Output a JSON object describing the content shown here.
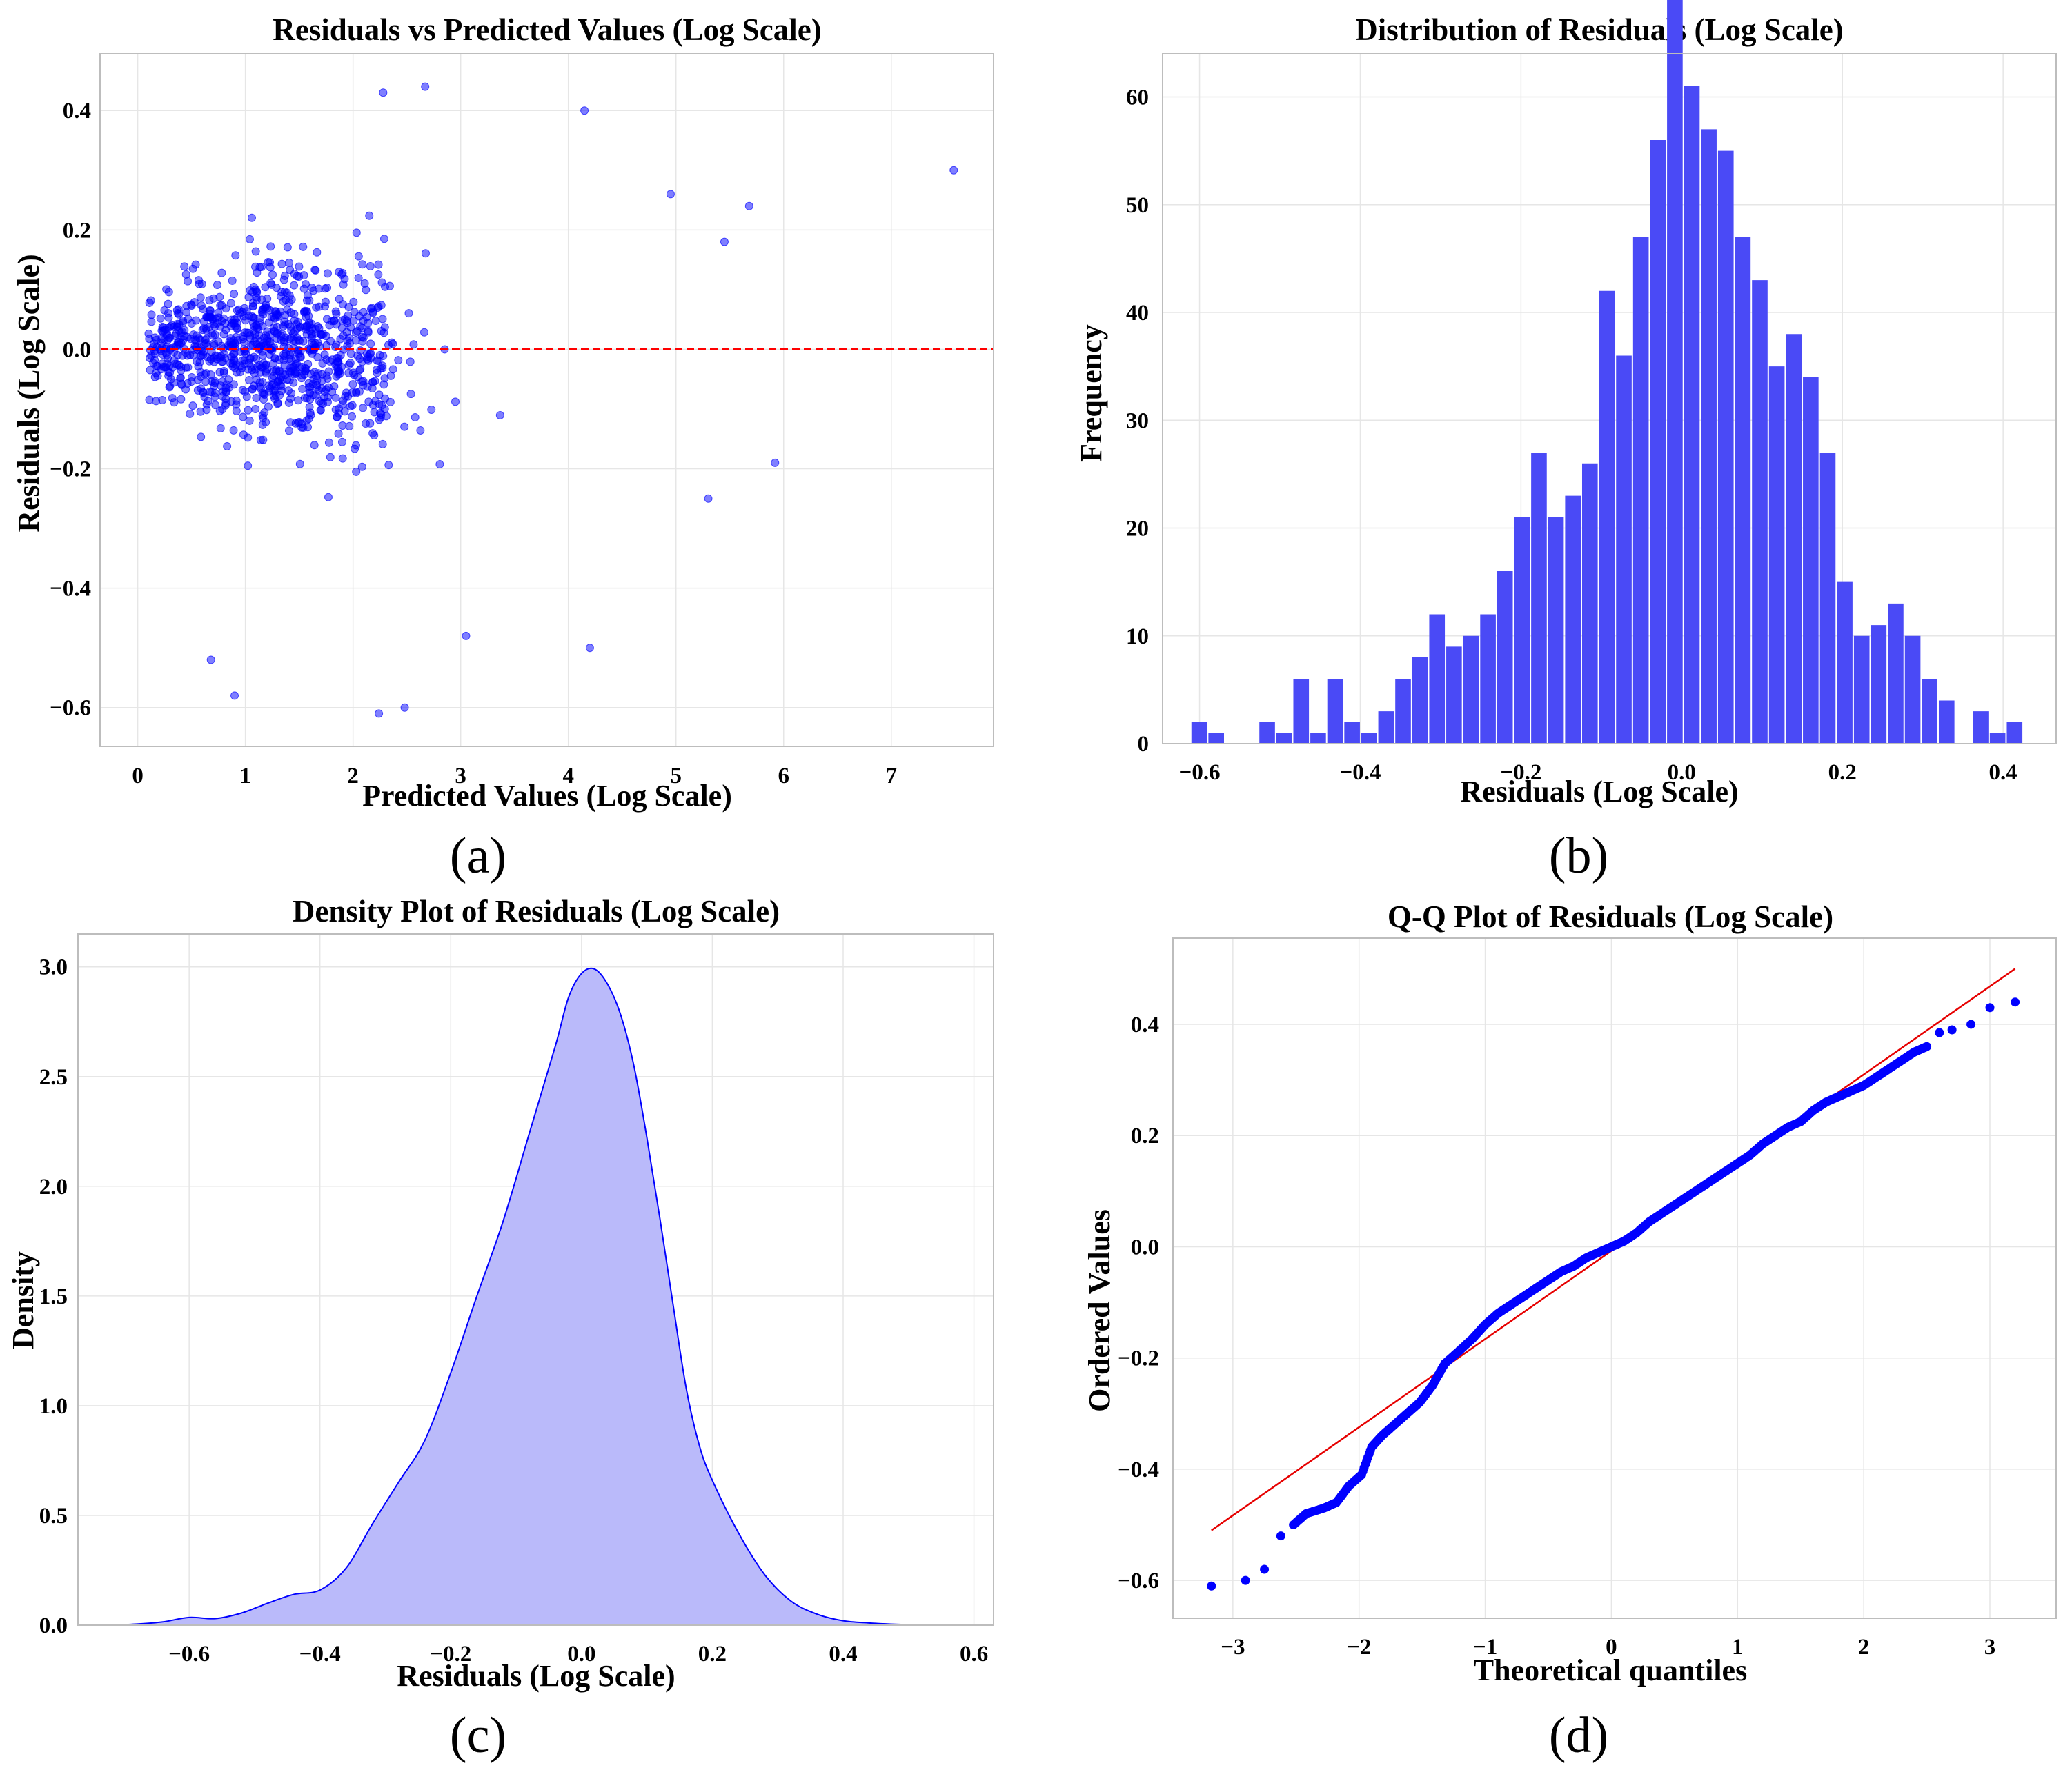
{
  "colors": {
    "blue": "#0000ff",
    "bar": "#4a4af6",
    "kde_fill": "#babafa",
    "red": "#ff0000",
    "ref_line": "#e60000"
  },
  "chart_data": [
    {
      "id": "a",
      "type": "scatter",
      "panel_label": "(a)",
      "title": "Residuals vs Predicted Values (Log Scale)",
      "xlabel": "Predicted Values (Log Scale)",
      "ylabel": "Residuals (Log Scale)",
      "xlim": [
        -0.35,
        7.95
      ],
      "ylim": [
        -0.665,
        0.495
      ],
      "xticks": [
        0,
        1,
        2,
        3,
        4,
        5,
        6,
        7
      ],
      "xtick_labels": [
        "0",
        "1",
        "2",
        "3",
        "4",
        "5",
        "6",
        "7"
      ],
      "yticks": [
        -0.6,
        -0.4,
        -0.2,
        0.0,
        0.2,
        0.4
      ],
      "ytick_labels": [
        "−0.6",
        "−0.4",
        "−0.2",
        "0.0",
        "0.2",
        "0.4"
      ],
      "reference_line_y": 0.0,
      "n_points": 1000,
      "notable_points": [
        {
          "x": 7.58,
          "y": 0.3
        },
        {
          "x": 5.92,
          "y": -0.19
        },
        {
          "x": 5.68,
          "y": 0.24
        },
        {
          "x": 5.45,
          "y": 0.18
        },
        {
          "x": 5.3,
          "y": -0.25
        },
        {
          "x": 4.95,
          "y": 0.26
        },
        {
          "x": 2.67,
          "y": 0.44
        },
        {
          "x": 2.28,
          "y": 0.43
        },
        {
          "x": 4.15,
          "y": 0.4
        },
        {
          "x": 4.2,
          "y": -0.5
        },
        {
          "x": 0.9,
          "y": -0.58
        },
        {
          "x": 2.24,
          "y": -0.61
        },
        {
          "x": 2.48,
          "y": -0.6
        },
        {
          "x": 0.68,
          "y": -0.52
        },
        {
          "x": 3.05,
          "y": -0.48
        }
      ]
    },
    {
      "id": "b",
      "type": "bar",
      "panel_label": "(b)",
      "title": "Distribution of Residuals (Log Scale)",
      "xlabel": "Residuals (Log Scale)",
      "ylabel": "Frequency",
      "xlim": [
        -0.646,
        0.466
      ],
      "ylim": [
        0,
        64
      ],
      "xticks": [
        -0.6,
        -0.4,
        -0.2,
        0.0,
        0.2,
        0.4
      ],
      "xtick_labels": [
        "−0.6",
        "−0.4",
        "−0.2",
        "0.0",
        "0.2",
        "0.4"
      ],
      "yticks": [
        0,
        10,
        20,
        30,
        40,
        50,
        60
      ],
      "ytick_labels": [
        "0",
        "10",
        "20",
        "30",
        "40",
        "50",
        "60"
      ],
      "bin_start": -0.611,
      "bin_width": 0.02114,
      "values": [
        2,
        1,
        0,
        0,
        2,
        1,
        6,
        1,
        6,
        2,
        1,
        3,
        6,
        8,
        12,
        9,
        10,
        12,
        16,
        21,
        27,
        21,
        23,
        26,
        42,
        36,
        47,
        56,
        72,
        61,
        57,
        55,
        47,
        43,
        35,
        38,
        34,
        27,
        15,
        10,
        11,
        13,
        10,
        6,
        4,
        0,
        3,
        1,
        2
      ]
    },
    {
      "id": "c",
      "type": "area",
      "panel_label": "(c)",
      "title": "Density Plot of Residuals (Log Scale)",
      "xlabel": "Residuals (Log Scale)",
      "ylabel": "Density",
      "xlim": [
        -0.77,
        0.63
      ],
      "ylim": [
        0,
        3.15
      ],
      "xticks": [
        -0.6,
        -0.4,
        -0.2,
        0.0,
        0.2,
        0.4,
        0.6
      ],
      "xtick_labels": [
        "−0.6",
        "−0.4",
        "−0.2",
        "0.0",
        "0.2",
        "0.4",
        "0.6"
      ],
      "yticks": [
        0.0,
        0.5,
        1.0,
        1.5,
        2.0,
        2.5,
        3.0
      ],
      "ytick_labels": [
        "0.0",
        "0.5",
        "1.0",
        "1.5",
        "2.0",
        "2.5",
        "3.0"
      ],
      "x": [
        -0.72,
        -0.68,
        -0.64,
        -0.6,
        -0.56,
        -0.52,
        -0.48,
        -0.44,
        -0.4,
        -0.36,
        -0.32,
        -0.28,
        -0.24,
        -0.2,
        -0.16,
        -0.12,
        -0.08,
        -0.04,
        -0.02,
        0.0,
        0.02,
        0.04,
        0.06,
        0.08,
        0.1,
        0.12,
        0.14,
        0.16,
        0.18,
        0.2,
        0.24,
        0.28,
        0.32,
        0.36,
        0.4,
        0.44,
        0.48,
        0.52,
        0.56
      ],
      "y": [
        0.0,
        0.005,
        0.015,
        0.035,
        0.03,
        0.055,
        0.1,
        0.14,
        0.16,
        0.26,
        0.46,
        0.65,
        0.84,
        1.15,
        1.5,
        1.84,
        2.24,
        2.64,
        2.86,
        2.97,
        2.99,
        2.92,
        2.78,
        2.55,
        2.22,
        1.85,
        1.46,
        1.08,
        0.82,
        0.66,
        0.42,
        0.23,
        0.11,
        0.05,
        0.02,
        0.01,
        0.004,
        0.001,
        0.0
      ]
    },
    {
      "id": "d",
      "type": "scatter",
      "panel_label": "(d)",
      "title": "Q-Q Plot of Residuals (Log Scale)",
      "xlabel": "Theoretical quantiles",
      "ylabel": "Ordered Values",
      "xlim": [
        -3.475,
        3.525
      ],
      "ylim": [
        -0.668,
        0.555
      ],
      "xticks": [
        -3,
        -2,
        -1,
        0,
        1,
        2,
        3
      ],
      "xtick_labels": [
        "−3",
        "−2",
        "−1",
        "0",
        "1",
        "2",
        "3"
      ],
      "yticks": [
        -0.6,
        -0.4,
        -0.2,
        0.0,
        0.2,
        0.4
      ],
      "ytick_labels": [
        "−0.6",
        "−0.4",
        "−0.2",
        "0.0",
        "0.2",
        "0.4"
      ],
      "fit_line": {
        "x": [
          -3.17,
          3.2
        ],
        "y": [
          -0.51,
          0.5
        ]
      },
      "points": [
        [
          -3.17,
          -0.61
        ],
        [
          -2.9,
          -0.6
        ],
        [
          -2.75,
          -0.58
        ],
        [
          -2.62,
          -0.52
        ],
        [
          -2.52,
          -0.5
        ],
        [
          -2.42,
          -0.48
        ],
        [
          -2.28,
          -0.47
        ],
        [
          -2.18,
          -0.46
        ],
        [
          -2.08,
          -0.43
        ],
        [
          -1.98,
          -0.41
        ],
        [
          -1.9,
          -0.36
        ],
        [
          -1.82,
          -0.34
        ],
        [
          -1.72,
          -0.32
        ],
        [
          -1.62,
          -0.3
        ],
        [
          -1.52,
          -0.28
        ],
        [
          -1.42,
          -0.25
        ],
        [
          -1.32,
          -0.21
        ],
        [
          -1.22,
          -0.19
        ],
        [
          -1.1,
          -0.165
        ],
        [
          -1.0,
          -0.14
        ],
        [
          -0.9,
          -0.12
        ],
        [
          -0.8,
          -0.105
        ],
        [
          -0.7,
          -0.09
        ],
        [
          -0.6,
          -0.075
        ],
        [
          -0.5,
          -0.06
        ],
        [
          -0.4,
          -0.045
        ],
        [
          -0.3,
          -0.035
        ],
        [
          -0.2,
          -0.02
        ],
        [
          -0.1,
          -0.01
        ],
        [
          0.0,
          0.0
        ],
        [
          0.1,
          0.01
        ],
        [
          0.2,
          0.025
        ],
        [
          0.3,
          0.045
        ],
        [
          0.4,
          0.06
        ],
        [
          0.5,
          0.075
        ],
        [
          0.6,
          0.09
        ],
        [
          0.7,
          0.105
        ],
        [
          0.8,
          0.12
        ],
        [
          0.9,
          0.135
        ],
        [
          1.0,
          0.15
        ],
        [
          1.1,
          0.165
        ],
        [
          1.2,
          0.185
        ],
        [
          1.3,
          0.2
        ],
        [
          1.4,
          0.215
        ],
        [
          1.5,
          0.225
        ],
        [
          1.6,
          0.245
        ],
        [
          1.7,
          0.26
        ],
        [
          1.8,
          0.27
        ],
        [
          1.9,
          0.28
        ],
        [
          2.0,
          0.29
        ],
        [
          2.1,
          0.305
        ],
        [
          2.2,
          0.32
        ],
        [
          2.3,
          0.335
        ],
        [
          2.4,
          0.35
        ],
        [
          2.5,
          0.36
        ],
        [
          2.6,
          0.385
        ],
        [
          2.7,
          0.39
        ],
        [
          2.85,
          0.4
        ],
        [
          3.0,
          0.43
        ],
        [
          3.2,
          0.44
        ]
      ]
    }
  ]
}
